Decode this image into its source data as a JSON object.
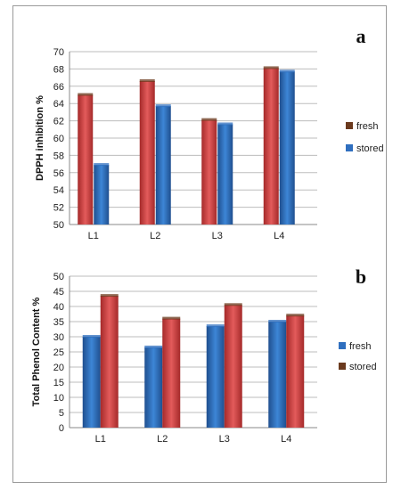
{
  "chart_data": [
    {
      "type": "bar",
      "panel_label": "a",
      "ylabel": "DPPH inhibition %",
      "categories": [
        "L1",
        "L2",
        "L3",
        "L4"
      ],
      "ylim": [
        50,
        70
      ],
      "ytick_step": 2,
      "grid": true,
      "legend_position": "right",
      "series": [
        {
          "name": "fresh",
          "values": [
            65.0,
            66.6,
            62.1,
            68.1
          ],
          "color": "#d44a4a",
          "legend_color": "#6b3a1e"
        },
        {
          "name": "stored",
          "values": [
            56.9,
            63.7,
            61.6,
            67.7
          ],
          "color": "#2f6fbf",
          "legend_color": "#2f6fbf"
        }
      ]
    },
    {
      "type": "bar",
      "panel_label": "b",
      "ylabel": "Total Phenol Content %",
      "categories": [
        "L1",
        "L2",
        "L3",
        "L4"
      ],
      "ylim": [
        0,
        50
      ],
      "ytick_step": 5,
      "grid": true,
      "legend_position": "right",
      "series": [
        {
          "name": "fresh",
          "values": [
            30.0,
            26.5,
            33.5,
            35.0
          ],
          "color": "#2f6fbf",
          "legend_color": "#2f6fbf"
        },
        {
          "name": "stored",
          "values": [
            43.5,
            36.0,
            40.5,
            37.0
          ],
          "color": "#d44a4a",
          "legend_color": "#6b3a1e"
        }
      ]
    }
  ]
}
